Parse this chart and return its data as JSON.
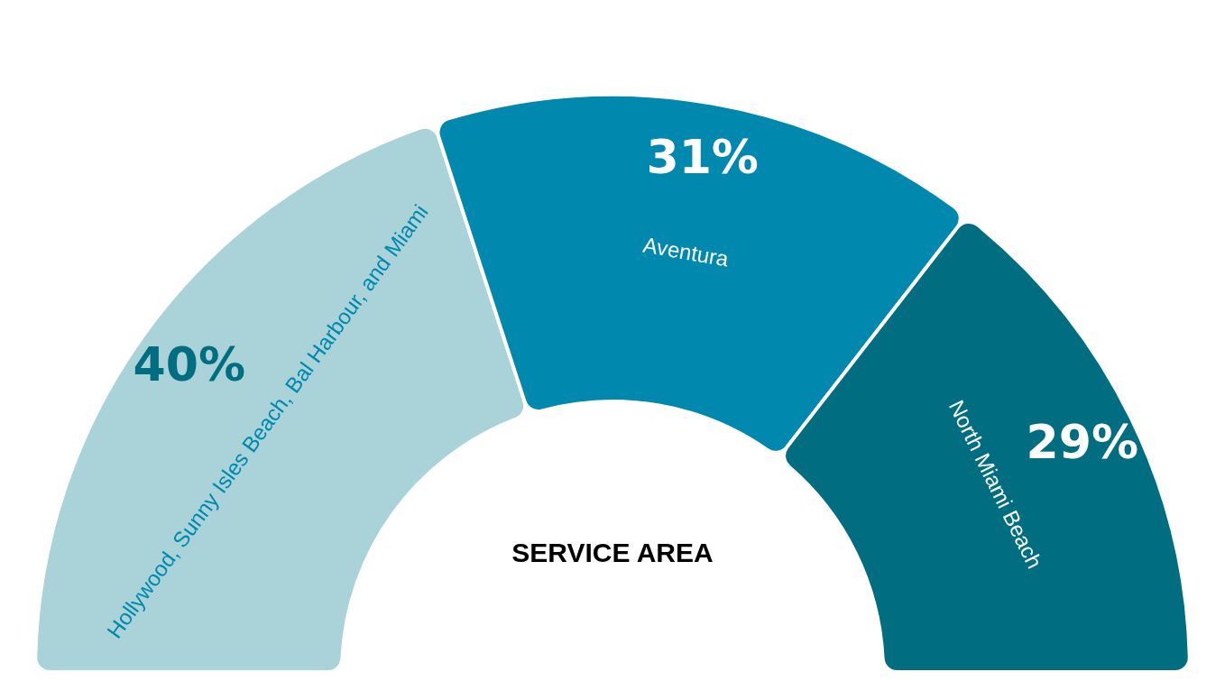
{
  "chart_data": {
    "type": "donut",
    "title": "SERVICE AREA",
    "categories": [
      "Hollywood, Sunny Isles Beach, Bal Harbour, and Miami",
      "Aventura",
      "North Miami Beach"
    ],
    "values": [
      40,
      31,
      29
    ],
    "value_labels": [
      "40%",
      "31%",
      "29%"
    ],
    "colors": [
      "#a9d3d8",
      "#0088ae",
      "#006e80"
    ],
    "legend": false
  }
}
